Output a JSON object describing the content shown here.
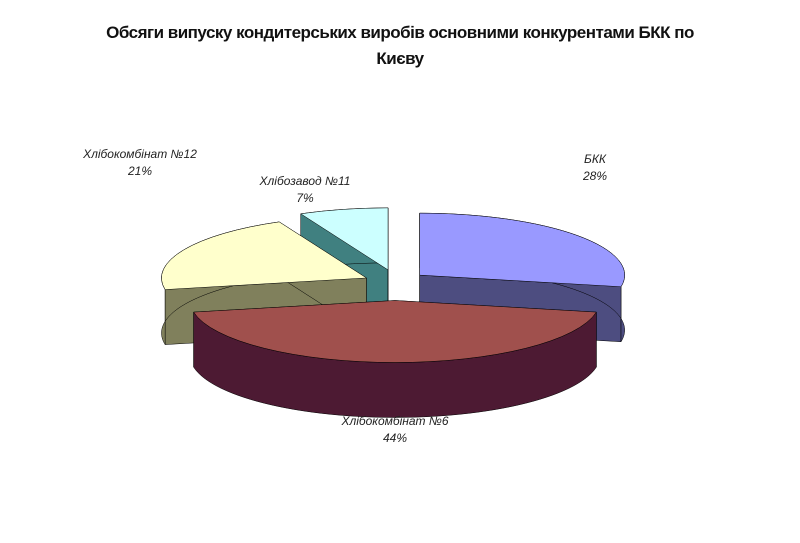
{
  "chart_data": {
    "type": "pie3d",
    "title": "Обсяги випуску кондитерських виробів  основними конкурентами БКК по Києву",
    "categories": [
      "БКК",
      "Хлібокомбінат №6",
      "Хлібокомбінат №12",
      "Хлібозавод №11"
    ],
    "values": [
      28,
      44,
      21,
      7
    ],
    "value_labels": [
      "28%",
      "44%",
      "21%",
      "7%"
    ],
    "colors": [
      "#9999ff",
      "#a0504d",
      "#ffffcc",
      "#ccffff"
    ],
    "side_colors": [
      "#4d4d80",
      "#4d1a33",
      "#80805c",
      "#408080"
    ]
  }
}
